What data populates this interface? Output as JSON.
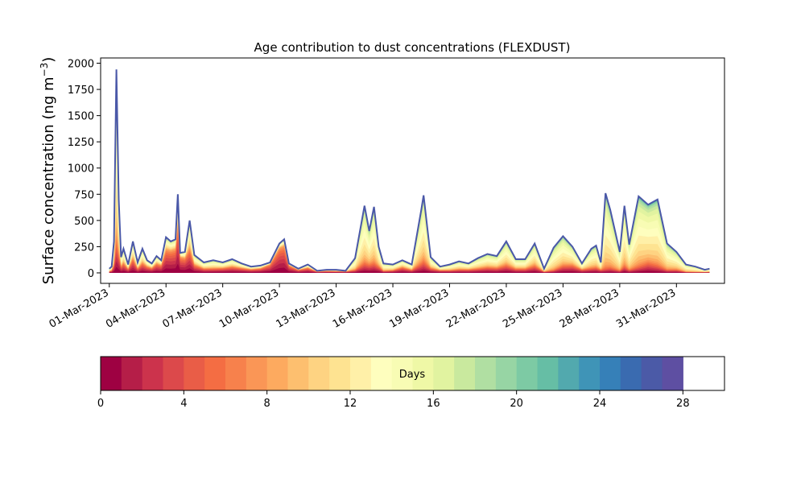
{
  "chart_data": {
    "type": "area",
    "title": "Age contribution to dust concentrations (FLEXDUST)",
    "ylabel": "Surface concentration (ng m",
    "ylabel_sup": "−3",
    "ylabel_close": ")",
    "ylim": [
      -100,
      2050
    ],
    "xlim": [
      "2023-02-28T13:00",
      "2023-04-02T13:00"
    ],
    "x_tick_labels": [
      "01-Mar-2023",
      "04-Mar-2023",
      "07-Mar-2023",
      "10-Mar-2023",
      "13-Mar-2023",
      "16-Mar-2023",
      "19-Mar-2023",
      "22-Mar-2023",
      "25-Mar-2023",
      "28-Mar-2023",
      "31-Mar-2023"
    ],
    "x_tick_dates": [
      "2023-03-01",
      "2023-03-04",
      "2023-03-07",
      "2023-03-10",
      "2023-03-13",
      "2023-03-16",
      "2023-03-19",
      "2023-03-22",
      "2023-03-25",
      "2023-03-28",
      "2023-03-31"
    ],
    "y_ticks": [
      0,
      250,
      500,
      750,
      1000,
      1250,
      1500,
      1750,
      2000
    ],
    "grid": false,
    "series_note_stacking": "stacked by age class 0–30 days",
    "x": [
      "2023-03-01T00:00",
      "2023-03-01T03:00",
      "2023-03-01T06:00",
      "2023-03-01T09:00",
      "2023-03-01T12:00",
      "2023-03-01T15:00",
      "2023-03-01T18:00",
      "2023-03-02T00:00",
      "2023-03-02T06:00",
      "2023-03-02T12:00",
      "2023-03-02T18:00",
      "2023-03-03T00:00",
      "2023-03-03T06:00",
      "2023-03-03T12:00",
      "2023-03-03T18:00",
      "2023-03-04T00:00",
      "2023-03-04T06:00",
      "2023-03-04T12:00",
      "2023-03-04T15:00",
      "2023-03-04T18:00",
      "2023-03-05T00:00",
      "2023-03-05T06:00",
      "2023-03-05T12:00",
      "2023-03-06T00:00",
      "2023-03-06T12:00",
      "2023-03-07T00:00",
      "2023-03-07T12:00",
      "2023-03-08T00:00",
      "2023-03-08T12:00",
      "2023-03-09T00:00",
      "2023-03-09T12:00",
      "2023-03-10T00:00",
      "2023-03-10T06:00",
      "2023-03-10T12:00",
      "2023-03-11T00:00",
      "2023-03-11T12:00",
      "2023-03-12T00:00",
      "2023-03-12T12:00",
      "2023-03-13T00:00",
      "2023-03-13T12:00",
      "2023-03-14T00:00",
      "2023-03-14T12:00",
      "2023-03-14T18:00",
      "2023-03-15T00:00",
      "2023-03-15T06:00",
      "2023-03-15T12:00",
      "2023-03-16T00:00",
      "2023-03-16T12:00",
      "2023-03-17T00:00",
      "2023-03-17T12:00",
      "2023-03-17T15:00",
      "2023-03-18T00:00",
      "2023-03-18T12:00",
      "2023-03-19T00:00",
      "2023-03-19T12:00",
      "2023-03-20T00:00",
      "2023-03-20T12:00",
      "2023-03-21T00:00",
      "2023-03-21T12:00",
      "2023-03-22T00:00",
      "2023-03-22T12:00",
      "2023-03-23T00:00",
      "2023-03-23T12:00",
      "2023-03-24T00:00",
      "2023-03-24T12:00",
      "2023-03-25T00:00",
      "2023-03-25T12:00",
      "2023-03-26T00:00",
      "2023-03-26T12:00",
      "2023-03-26T18:00",
      "2023-03-27T00:00",
      "2023-03-27T06:00",
      "2023-03-27T12:00",
      "2023-03-28T00:00",
      "2023-03-28T06:00",
      "2023-03-28T12:00",
      "2023-03-29T00:00",
      "2023-03-29T12:00",
      "2023-03-30T00:00",
      "2023-03-30T12:00",
      "2023-03-31T00:00",
      "2023-03-31T12:00",
      "2023-04-01T00:00",
      "2023-04-01T12:00",
      "2023-04-01T18:00"
    ],
    "total": [
      40,
      60,
      300,
      1940,
      700,
      150,
      230,
      80,
      300,
      100,
      230,
      120,
      90,
      160,
      120,
      340,
      300,
      320,
      750,
      190,
      200,
      500,
      170,
      100,
      120,
      100,
      130,
      90,
      60,
      70,
      100,
      280,
      320,
      90,
      40,
      80,
      20,
      30,
      30,
      20,
      140,
      640,
      400,
      630,
      250,
      90,
      80,
      120,
      80,
      600,
      740,
      150,
      60,
      80,
      110,
      90,
      140,
      180,
      160,
      300,
      130,
      130,
      280,
      40,
      240,
      350,
      250,
      90,
      230,
      260,
      100,
      760,
      600,
      200,
      640,
      270,
      730,
      650,
      700,
      280,
      200,
      80,
      60,
      30,
      40
    ],
    "young_frac": [
      0.35,
      0.35,
      0.25,
      0.15,
      0.25,
      0.4,
      0.4,
      0.45,
      0.45,
      0.4,
      0.4,
      0.5,
      0.5,
      0.55,
      0.6,
      0.65,
      0.7,
      0.7,
      0.6,
      0.8,
      0.7,
      0.45,
      0.45,
      0.4,
      0.35,
      0.45,
      0.45,
      0.5,
      0.55,
      0.6,
      0.8,
      0.85,
      0.8,
      0.8,
      0.7,
      0.6,
      0.55,
      0.55,
      0.5,
      0.6,
      0.2,
      0.15,
      0.2,
      0.15,
      0.25,
      0.2,
      0.3,
      0.45,
      0.35,
      0.15,
      0.15,
      0.3,
      0.4,
      0.3,
      0.3,
      0.35,
      0.3,
      0.3,
      0.3,
      0.25,
      0.3,
      0.3,
      0.25,
      0.25,
      0.1,
      0.2,
      0.3,
      0.35,
      0.2,
      0.2,
      0.3,
      0.05,
      0.08,
      0.1,
      0.1,
      0.1,
      0.08,
      0.15,
      0.1,
      0.1,
      0.15,
      0.1,
      0.1,
      0.2,
      0.2
    ]
  },
  "colorbar": {
    "label": "Days",
    "min": 0,
    "max": 30,
    "tick_labels": [
      "0",
      "4",
      "8",
      "12",
      "16",
      "20",
      "24",
      "28"
    ],
    "tick_values": [
      0,
      4,
      8,
      12,
      16,
      20,
      24,
      28
    ],
    "colors": [
      "#9e0142",
      "#b51e48",
      "#cc334c",
      "#dc494b",
      "#e95d47",
      "#f46d43",
      "#f7814c",
      "#fa9656",
      "#fdaa5f",
      "#fdbf6f",
      "#fed382",
      "#fee391",
      "#fff0a8",
      "#fefebe",
      "#f8fcb4",
      "#eff8a6",
      "#e1f3a0",
      "#c9e99e",
      "#b0dfa2",
      "#97d5a4",
      "#7dcaa4",
      "#66bea5",
      "#52a9ae",
      "#3f94b7",
      "#3680b8",
      "#3a6bb0",
      "#4b5aa7",
      "#5e4fa2"
    ]
  },
  "line_color": "#4a58a8"
}
